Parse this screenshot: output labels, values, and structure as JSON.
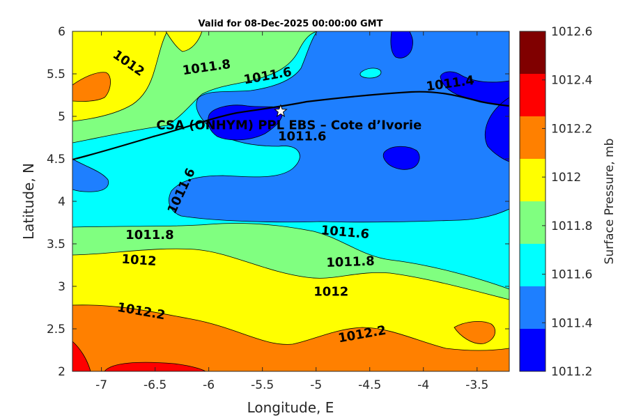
{
  "chart_data": {
    "type": "contour",
    "title": "Valid for 08-Dec-2025 00:00:00 GMT",
    "xlabel": "Longitude, E",
    "ylabel": "Latitude, N",
    "xlim": [
      -7.27,
      -3.2
    ],
    "ylim": [
      2,
      6
    ],
    "xticks": [
      "-7",
      "-6.5",
      "-6",
      "-5.5",
      "-5",
      "-4.5",
      "-4",
      "-3.5"
    ],
    "yticks": [
      "2",
      "2.5",
      "3",
      "3.5",
      "4",
      "4.5",
      "5",
      "5.5",
      "6"
    ],
    "colorbar": {
      "label": "Surface Pressure, mb",
      "ticks": [
        "1011.2",
        "1011.4",
        "1011.6",
        "1011.8",
        "1012",
        "1012.2",
        "1012.4",
        "1012.6"
      ],
      "colors": [
        "#0000ff",
        "#1e7fff",
        "#00ffff",
        "#80ff80",
        "#ffff00",
        "#ff8000",
        "#ff0000",
        "#800000"
      ]
    },
    "contour_labels": [
      {
        "text": "1012",
        "x": -6.75,
        "y": 5.62
      },
      {
        "text": "1011.8",
        "x": -6.02,
        "y": 5.57
      },
      {
        "text": "1011.6",
        "x": -5.45,
        "y": 5.47
      },
      {
        "text": "1011.4",
        "x": -3.75,
        "y": 5.38
      },
      {
        "text": "1011.6",
        "x": -5.13,
        "y": 4.76
      },
      {
        "text": "1011.6",
        "x": -6.25,
        "y": 4.12
      },
      {
        "text": "1011.8",
        "x": -6.55,
        "y": 3.6
      },
      {
        "text": "1011.6",
        "x": -4.73,
        "y": 3.63
      },
      {
        "text": "1012",
        "x": -6.65,
        "y": 3.3
      },
      {
        "text": "1011.8",
        "x": -4.68,
        "y": 3.28
      },
      {
        "text": "1012",
        "x": -4.86,
        "y": 2.93
      },
      {
        "text": "1012.2",
        "x": -6.63,
        "y": 2.7
      },
      {
        "text": "1012.2",
        "x": -4.57,
        "y": 2.43
      }
    ],
    "site": {
      "label": "CSA (ONHYM) PPL EBS  – Cote d’Ivorie",
      "lon": -5.33,
      "lat": 5.06
    }
  }
}
